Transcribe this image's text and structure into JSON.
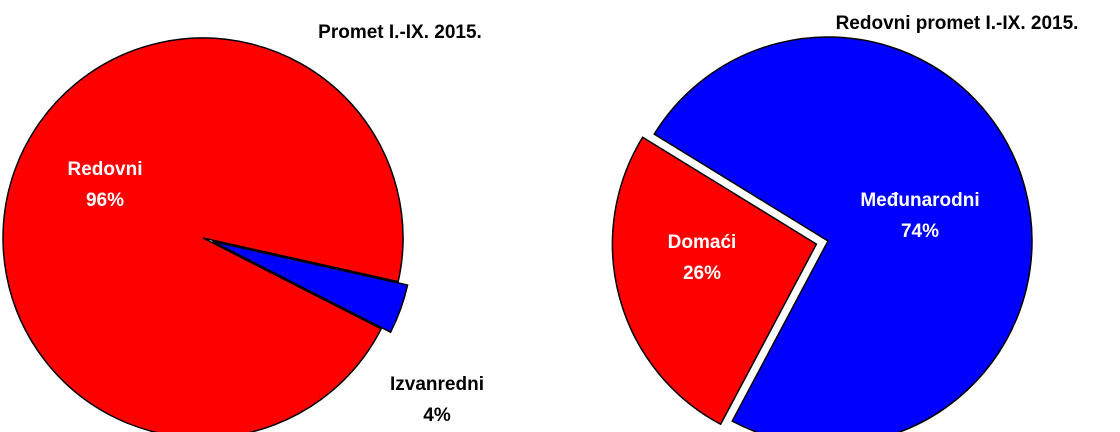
{
  "chart_data": [
    {
      "type": "pie",
      "title": "Promet I.-IX. 2015.",
      "categories": [
        "Redovni",
        "Izvanredni"
      ],
      "values": [
        96,
        4
      ],
      "value_labels": [
        "96%",
        "4%"
      ],
      "colors": [
        "#ff0000",
        "#0000ff"
      ]
    },
    {
      "type": "pie",
      "title": "Redovni promet I.-IX. 2015.",
      "categories": [
        "Domaći",
        "Međunarodni"
      ],
      "values": [
        26,
        74
      ],
      "value_labels": [
        "26%",
        "74%"
      ],
      "colors": [
        "#ff0000",
        "#0000ff"
      ]
    }
  ]
}
